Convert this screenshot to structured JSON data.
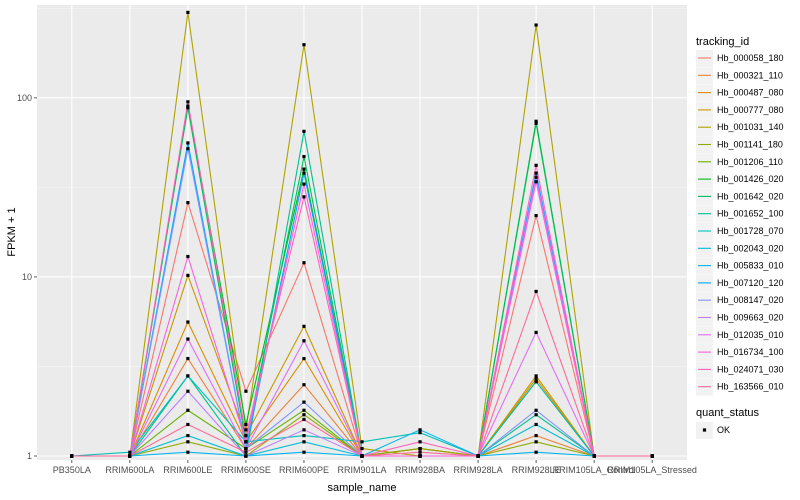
{
  "chart_data": {
    "type": "line",
    "title": "",
    "xlabel": "sample_name",
    "ylabel": "FPKM + 1",
    "y_scale": "log10",
    "ylim": [
      0.95,
      330
    ],
    "y_ticks": [
      1,
      10,
      100
    ],
    "y_tick_labels": [
      "1",
      "10",
      "100"
    ],
    "grid": true,
    "legend_position": "right",
    "categories": [
      "PB350LA",
      "RRIM600LA",
      "RRIM600LE",
      "RRIM600SE",
      "RRIM600PE",
      "RRIM901LA",
      "RRIM928BA",
      "RRIM928LA",
      "RRIM928LE",
      "RRIM105LA_Control",
      "RRIM105LA_Stressed"
    ],
    "category_labels": [
      "PB350LA",
      "RRIM600LA",
      "RRIM600LE",
      "RRIM600SE",
      "RRIM600PE",
      "RRIM901LA",
      "RRIM928BA",
      "RRIM928LA",
      "RRIM928LE",
      "RRIM105LA_Control",
      "RRIM105LA_Stressed"
    ],
    "legend_title": "tracking_id",
    "series": [
      {
        "name": "Hb_000058_180",
        "color": "#F8766D",
        "values": [
          1,
          1,
          26,
          2.3,
          12,
          1,
          1.1,
          1,
          22,
          1,
          1
        ]
      },
      {
        "name": "Hb_000321_110",
        "color": "#EC8239",
        "values": [
          1,
          1,
          3.5,
          1.1,
          2.5,
          1,
          1.1,
          1,
          1.3,
          1,
          1
        ]
      },
      {
        "name": "Hb_000487_080",
        "color": "#DB8E00",
        "values": [
          1,
          1,
          5.6,
          1.2,
          3.5,
          1,
          1,
          1,
          2.7,
          1,
          1
        ]
      },
      {
        "name": "Hb_000777_080",
        "color": "#C79800",
        "values": [
          1,
          1,
          10.2,
          1.3,
          5.3,
          1,
          1.1,
          1,
          2.8,
          1,
          1
        ]
      },
      {
        "name": "Hb_001031_140",
        "color": "#AEA200",
        "values": [
          1,
          1,
          300,
          1.4,
          198,
          1.1,
          1,
          1,
          255,
          1,
          1
        ]
      },
      {
        "name": "Hb_001141_180",
        "color": "#8FAA00",
        "values": [
          1,
          1,
          1.2,
          1.0,
          1.7,
          1,
          1.1,
          1,
          1.2,
          1,
          1
        ]
      },
      {
        "name": "Hb_001206_110",
        "color": "#64B200",
        "values": [
          1,
          1,
          1.8,
          1.1,
          1.8,
          1,
          1,
          1,
          2.6,
          1,
          1
        ]
      },
      {
        "name": "Hb_001426_020",
        "color": "#00B81B",
        "values": [
          1,
          1,
          90,
          1.5,
          40,
          1,
          1,
          1,
          72,
          1,
          1
        ]
      },
      {
        "name": "Hb_001642_020",
        "color": "#00BD5C",
        "values": [
          1,
          1,
          88,
          1.2,
          47,
          1,
          1,
          1,
          74,
          1,
          1
        ]
      },
      {
        "name": "Hb_001652_100",
        "color": "#00C08E",
        "values": [
          1,
          1,
          2.8,
          1.0,
          65,
          1,
          1,
          1,
          1.7,
          1,
          1
        ]
      },
      {
        "name": "Hb_001728_070",
        "color": "#00C1B7",
        "values": [
          1,
          1.05,
          2.8,
          1.2,
          1.3,
          1.2,
          1.35,
          1,
          2.6,
          1,
          1
        ]
      },
      {
        "name": "Hb_002043_020",
        "color": "#00BDD4",
        "values": [
          1,
          1,
          1.3,
          1.0,
          1.2,
          1,
          1,
          1,
          1.5,
          1,
          1
        ]
      },
      {
        "name": "Hb_005833_010",
        "color": "#00B5EE",
        "values": [
          1,
          1,
          1.05,
          1.0,
          1.05,
          1,
          1.4,
          1,
          1.05,
          1,
          1
        ]
      },
      {
        "name": "Hb_007120_120",
        "color": "#00A7FF",
        "values": [
          1,
          1,
          56,
          1.1,
          38,
          1,
          1,
          1,
          38,
          1,
          1
        ]
      },
      {
        "name": "Hb_008147_020",
        "color": "#7F96FF",
        "values": [
          1,
          1,
          52,
          1.1,
          2.0,
          1,
          1,
          1,
          1.8,
          1,
          1
        ]
      },
      {
        "name": "Hb_009663_020",
        "color": "#BC81FF",
        "values": [
          1,
          1,
          2.3,
          1.0,
          1.4,
          1,
          1,
          1,
          36,
          1,
          1
        ]
      },
      {
        "name": "Hb_012035_010",
        "color": "#E26EF7",
        "values": [
          1,
          1,
          4.5,
          1.1,
          4.4,
          1,
          1,
          1,
          4.9,
          1,
          1
        ]
      },
      {
        "name": "Hb_016734_100",
        "color": "#F863DF",
        "values": [
          1,
          1,
          13,
          1.2,
          33,
          1,
          1,
          1,
          34,
          1,
          1
        ]
      },
      {
        "name": "Hb_024071_030",
        "color": "#FF62BF",
        "values": [
          1,
          1,
          95,
          1.3,
          28,
          1,
          1.2,
          1,
          42,
          1,
          1
        ]
      },
      {
        "name": "Hb_163566_010",
        "color": "#FF6A98",
        "values": [
          1,
          1,
          1.5,
          1.05,
          1.6,
          1,
          1.05,
          1,
          8.3,
          1,
          1
        ]
      }
    ],
    "shape_legend_title": "quant_status",
    "shape_legend_items": [
      "OK"
    ],
    "colors": {
      "panel_bg": "#EBEBEB",
      "grid_major": "#FFFFFF",
      "point": "#000000"
    }
  }
}
